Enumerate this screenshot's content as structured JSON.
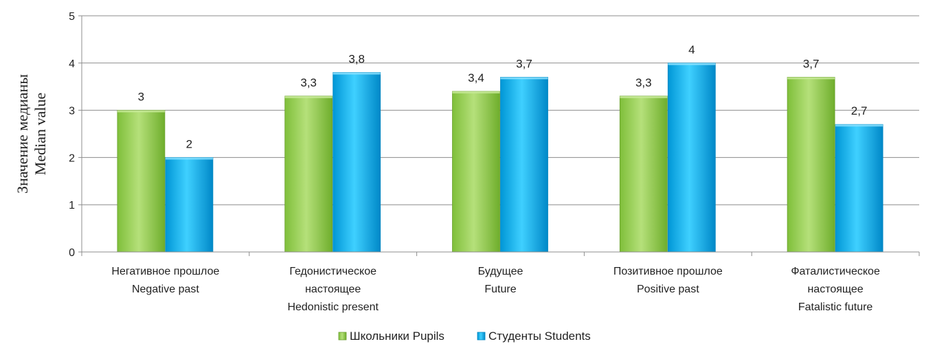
{
  "chart_data": {
    "type": "bar",
    "categories": [
      [
        "Негативное прошлое",
        "Negative past"
      ],
      [
        "Гедонистическое",
        "настоящее",
        "Hedonistic present"
      ],
      [
        "Будущее",
        "Future"
      ],
      [
        "Позитивное прошлое",
        "Positive past"
      ],
      [
        "Фаталистическое",
        "настоящее",
        "Fatalistic future"
      ]
    ],
    "series": [
      {
        "name": "Школьники Pupils",
        "values": [
          3,
          3.3,
          3.4,
          3.3,
          3.7
        ],
        "labels": [
          "3",
          "3,3",
          "3,4",
          "3,3",
          "3,7"
        ],
        "color": "#92d050"
      },
      {
        "name": "Студенты Students",
        "values": [
          2,
          3.8,
          3.7,
          4,
          2.7
        ],
        "labels": [
          "2",
          "3,8",
          "3,7",
          "4",
          "2,7"
        ],
        "color": "#00b0f0"
      }
    ],
    "ylim": [
      0,
      5
    ],
    "yticks": [
      "0",
      "1",
      "2",
      "3",
      "4",
      "5"
    ],
    "ylabel": [
      "Значение медианы",
      "Median value"
    ],
    "grid": true,
    "legend_position": "bottom"
  }
}
